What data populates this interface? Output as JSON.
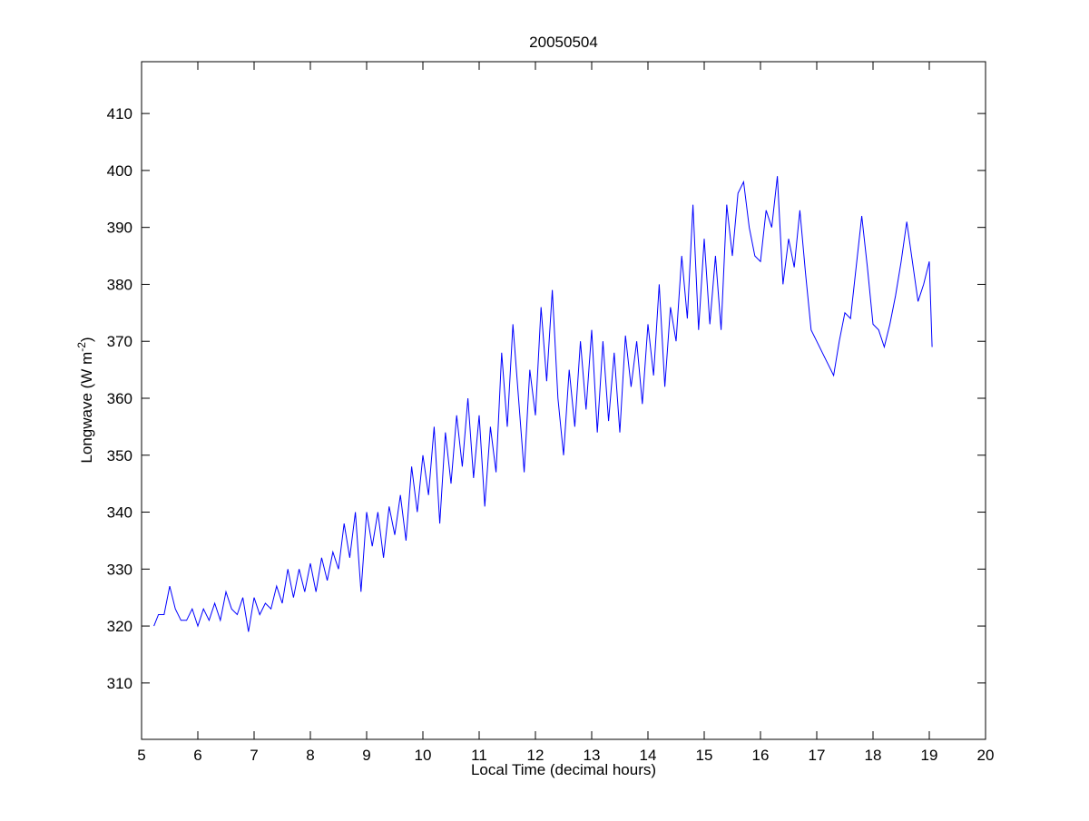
{
  "chart_data": {
    "type": "line",
    "title": "20050504",
    "xlabel": "Local Time (decimal hours)",
    "ylabel_base": "Longwave (W m",
    "ylabel_sup": "-2",
    "ylabel_tail": ")",
    "xlim": [
      5,
      20
    ],
    "ylim": [
      300.1,
      419.1
    ],
    "xticks": [
      5,
      6,
      7,
      8,
      9,
      10,
      11,
      12,
      13,
      14,
      15,
      16,
      17,
      18,
      19,
      20
    ],
    "yticks": [
      310,
      320,
      330,
      340,
      350,
      360,
      370,
      380,
      390,
      400,
      410
    ],
    "grid": false,
    "series": [
      {
        "name": "Longwave",
        "color": "#0000ff",
        "x": [
          5.22,
          5.3,
          5.4,
          5.5,
          5.6,
          5.7,
          5.8,
          5.9,
          6.0,
          6.1,
          6.2,
          6.3,
          6.4,
          6.5,
          6.6,
          6.7,
          6.8,
          6.9,
          7.0,
          7.1,
          7.2,
          7.3,
          7.4,
          7.5,
          7.6,
          7.7,
          7.8,
          7.9,
          8.0,
          8.1,
          8.2,
          8.3,
          8.4,
          8.5,
          8.6,
          8.7,
          8.8,
          8.9,
          9.0,
          9.1,
          9.2,
          9.3,
          9.4,
          9.5,
          9.6,
          9.7,
          9.8,
          9.9,
          10.0,
          10.1,
          10.2,
          10.3,
          10.4,
          10.5,
          10.6,
          10.7,
          10.8,
          10.9,
          11.0,
          11.1,
          11.2,
          11.3,
          11.4,
          11.5,
          11.6,
          11.7,
          11.8,
          11.9,
          12.0,
          12.1,
          12.2,
          12.3,
          12.4,
          12.5,
          12.6,
          12.7,
          12.8,
          12.9,
          13.0,
          13.1,
          13.2,
          13.3,
          13.4,
          13.5,
          13.6,
          13.7,
          13.8,
          13.9,
          14.0,
          14.1,
          14.2,
          14.3,
          14.4,
          14.5,
          14.6,
          14.7,
          14.8,
          14.9,
          15.0,
          15.1,
          15.2,
          15.3,
          15.4,
          15.5,
          15.6,
          15.7,
          15.8,
          15.9,
          16.0,
          16.1,
          16.2,
          16.3,
          16.4,
          16.5,
          16.6,
          16.7,
          16.8,
          16.9,
          17.0,
          17.1,
          17.2,
          17.3,
          17.4,
          17.5,
          17.6,
          17.7,
          17.8,
          17.9,
          18.0,
          18.1,
          18.2,
          18.3,
          18.4,
          18.5,
          18.6,
          18.7,
          18.8,
          18.9,
          19.0,
          19.05
        ],
        "y": [
          320,
          322,
          322,
          327,
          323,
          321,
          321,
          323,
          320,
          323,
          321,
          324,
          321,
          326,
          323,
          322,
          325,
          319,
          325,
          322,
          324,
          323,
          327,
          324,
          330,
          325,
          330,
          326,
          331,
          326,
          332,
          328,
          333,
          330,
          338,
          332,
          340,
          326,
          340,
          334,
          340,
          332,
          341,
          336,
          343,
          335,
          348,
          340,
          350,
          343,
          355,
          338,
          354,
          345,
          357,
          348,
          360,
          346,
          357,
          341,
          355,
          347,
          368,
          355,
          373,
          360,
          347,
          365,
          357,
          376,
          363,
          379,
          360,
          350,
          365,
          355,
          370,
          358,
          372,
          354,
          370,
          356,
          368,
          354,
          371,
          362,
          370,
          359,
          373,
          364,
          380,
          362,
          376,
          370,
          385,
          374,
          394,
          372,
          388,
          373,
          385,
          372,
          394,
          385,
          396,
          398,
          390,
          385,
          384,
          393,
          390,
          399,
          380,
          388,
          383,
          393,
          382,
          372,
          370,
          368,
          366,
          364,
          370,
          375,
          374,
          383,
          392,
          383,
          373,
          372,
          369,
          373,
          378,
          384,
          391,
          384,
          377,
          380,
          384,
          369
        ]
      }
    ]
  }
}
